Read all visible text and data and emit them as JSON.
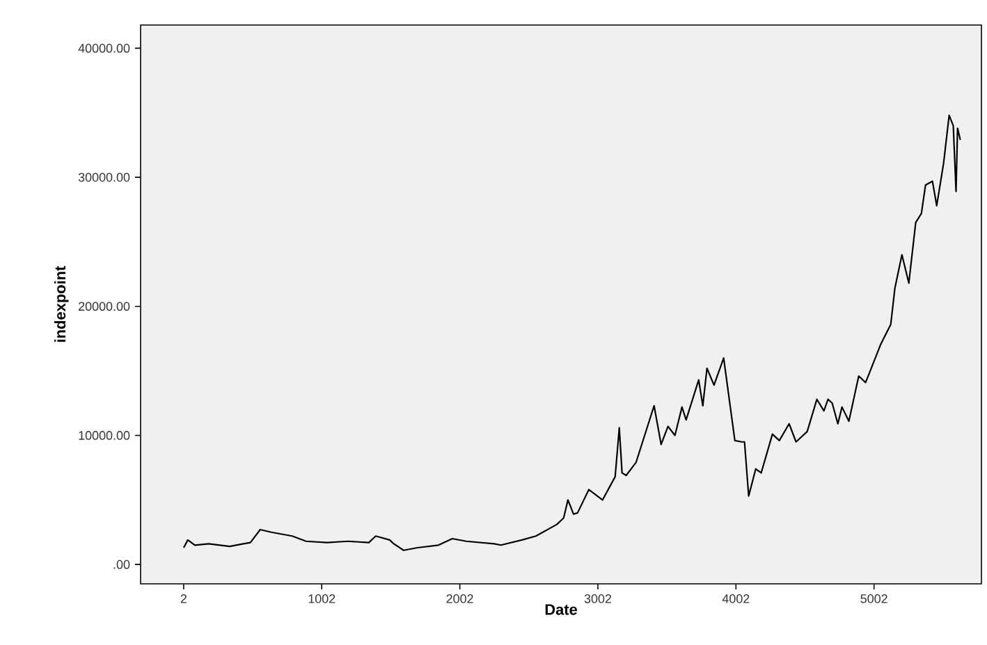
{
  "chart_data": {
    "type": "line",
    "xlabel": "Date",
    "ylabel": "indexpoint",
    "x": [
      2,
      32,
      83,
      183,
      335,
      435,
      485,
      556,
      637,
      788,
      889,
      1040,
      1191,
      1343,
      1393,
      1494,
      1524,
      1595,
      1696,
      1847,
      1948,
      2049,
      2250,
      2300,
      2452,
      2553,
      2654,
      2704,
      2754,
      2785,
      2804,
      2825,
      2855,
      2936,
      3036,
      3127,
      3157,
      3177,
      3207,
      3278,
      3409,
      3460,
      3510,
      3560,
      3611,
      3641,
      3732,
      3762,
      3792,
      3843,
      3913,
      3994,
      4044,
      4064,
      4094,
      4145,
      4185,
      4266,
      4316,
      4387,
      4437,
      4518,
      4588,
      4639,
      4669,
      4699,
      4740,
      4770,
      4820,
      4891,
      4941,
      5052,
      5123,
      5153,
      5204,
      5254,
      5304,
      5345,
      5375,
      5425,
      5456,
      5506,
      5546,
      5576,
      5596,
      5607,
      5627
    ],
    "series": [
      {
        "color": "#000000",
        "values": [
          1300,
          1900,
          1500,
          1600,
          1400,
          1600,
          1700,
          2700,
          2500,
          2200,
          1800,
          1700,
          1800,
          1700,
          2200,
          1900,
          1600,
          1100,
          1300,
          1500,
          2000,
          1800,
          1600,
          1500,
          1900,
          2200,
          2800,
          3100,
          3600,
          5000,
          4500,
          3900,
          4000,
          5800,
          5000,
          6800,
          10600,
          7100,
          6900,
          7900,
          12300,
          9300,
          10700,
          10000,
          12200,
          11200,
          14300,
          12300,
          15200,
          13900,
          16000,
          9600,
          9500,
          9500,
          5300,
          7400,
          7100,
          10100,
          9600,
          10900,
          9500,
          10300,
          12800,
          11900,
          12800,
          12500,
          10900,
          12200,
          11100,
          14600,
          14100,
          17100,
          18600,
          21400,
          24000,
          21800,
          26500,
          27200,
          29400,
          29700,
          27800,
          31100,
          34800,
          34000,
          28900,
          33800,
          32900
        ]
      }
    ],
    "xlim": [
      -310,
      5780
    ],
    "ylim": [
      -1500,
      41800
    ],
    "xticks": [
      2,
      1002,
      2002,
      3002,
      4002,
      5002
    ],
    "yticks": [
      {
        "value": 0,
        "label": ".00"
      },
      {
        "value": 10000,
        "label": "10000.00"
      },
      {
        "value": 20000,
        "label": "20000.00"
      },
      {
        "value": 30000,
        "label": "30000.00"
      },
      {
        "value": 40000,
        "label": "40000.00"
      }
    ],
    "grid": false,
    "marker": "none",
    "line_style": "solid"
  }
}
